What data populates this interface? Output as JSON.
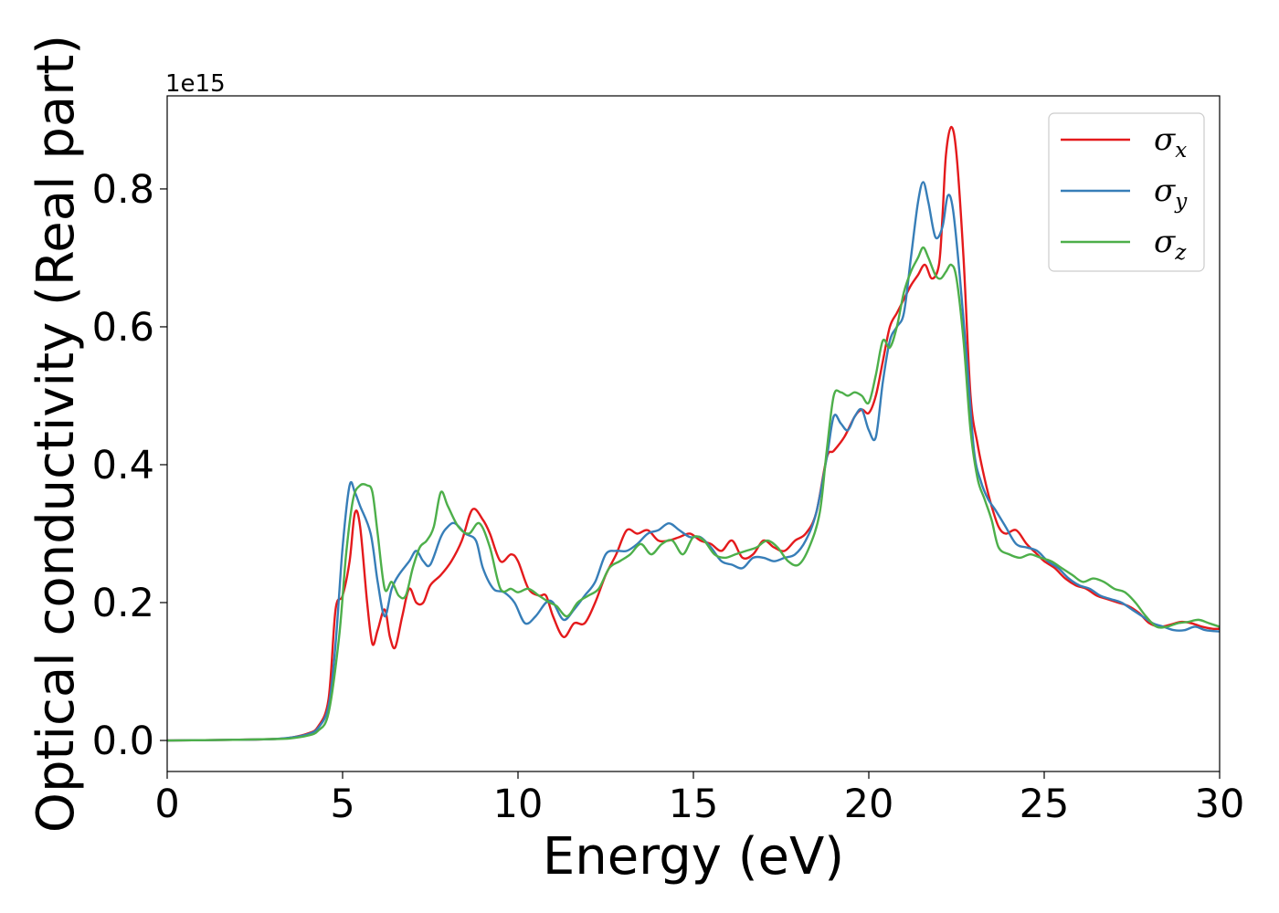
{
  "chart_data": {
    "type": "line",
    "title": "",
    "xlabel": "Energy (eV)",
    "ylabel": "Optical conductivity (Real part)",
    "y_offset_label": "1e15",
    "xlim": [
      0,
      30
    ],
    "ylim": [
      -0.045,
      0.935
    ],
    "x_ticks": [
      0,
      5,
      10,
      15,
      20,
      25,
      30
    ],
    "x_tick_labels": [
      "0",
      "5",
      "10",
      "15",
      "20",
      "25",
      "30"
    ],
    "y_ticks": [
      0.0,
      0.2,
      0.4,
      0.6,
      0.8
    ],
    "y_tick_labels": [
      "0.0",
      "0.2",
      "0.4",
      "0.6",
      "0.8"
    ],
    "grid": false,
    "legend_position": "top-right",
    "series": [
      {
        "name": "σx",
        "legend_symbol": "σ",
        "legend_subscript": "x",
        "color": "#e41a1c",
        "x": [
          0,
          2,
          3,
          3.5,
          4.0,
          4.3,
          4.6,
          4.8,
          5.0,
          5.2,
          5.35,
          5.5,
          5.7,
          5.85,
          6.0,
          6.2,
          6.35,
          6.5,
          6.7,
          6.9,
          7.1,
          7.3,
          7.5,
          7.8,
          8.1,
          8.4,
          8.7,
          9.0,
          9.2,
          9.5,
          9.8,
          10.0,
          10.3,
          10.6,
          10.8,
          11.0,
          11.3,
          11.6,
          11.9,
          12.2,
          12.5,
          12.8,
          13.1,
          13.4,
          13.7,
          14.0,
          14.3,
          14.6,
          14.9,
          15.2,
          15.5,
          15.8,
          16.1,
          16.4,
          16.7,
          17.0,
          17.3,
          17.6,
          17.9,
          18.2,
          18.5,
          18.8,
          19.0,
          19.3,
          19.6,
          19.8,
          20.0,
          20.2,
          20.4,
          20.6,
          20.8,
          21.0,
          21.2,
          21.4,
          21.6,
          21.8,
          22.0,
          22.1,
          22.2,
          22.35,
          22.5,
          22.7,
          22.9,
          23.1,
          23.3,
          23.5,
          23.7,
          23.9,
          24.2,
          24.5,
          24.8,
          25.0,
          25.3,
          25.6,
          25.9,
          26.2,
          26.5,
          26.8,
          27.1,
          27.4,
          27.7,
          28.0,
          28.3,
          28.6,
          28.9,
          29.2,
          29.5,
          29.8,
          30.0
        ],
        "y": [
          0.0,
          0.001,
          0.002,
          0.004,
          0.01,
          0.02,
          0.06,
          0.19,
          0.21,
          0.26,
          0.33,
          0.31,
          0.2,
          0.14,
          0.16,
          0.19,
          0.15,
          0.135,
          0.18,
          0.22,
          0.2,
          0.2,
          0.225,
          0.24,
          0.26,
          0.29,
          0.335,
          0.32,
          0.3,
          0.26,
          0.27,
          0.26,
          0.22,
          0.21,
          0.21,
          0.18,
          0.15,
          0.17,
          0.17,
          0.2,
          0.24,
          0.27,
          0.305,
          0.3,
          0.305,
          0.29,
          0.29,
          0.295,
          0.3,
          0.29,
          0.285,
          0.275,
          0.29,
          0.265,
          0.27,
          0.29,
          0.28,
          0.275,
          0.29,
          0.3,
          0.33,
          0.41,
          0.42,
          0.44,
          0.47,
          0.48,
          0.475,
          0.5,
          0.55,
          0.6,
          0.62,
          0.64,
          0.66,
          0.675,
          0.69,
          0.67,
          0.69,
          0.76,
          0.85,
          0.89,
          0.85,
          0.7,
          0.5,
          0.43,
          0.38,
          0.34,
          0.31,
          0.3,
          0.305,
          0.285,
          0.27,
          0.26,
          0.25,
          0.235,
          0.225,
          0.22,
          0.21,
          0.205,
          0.2,
          0.195,
          0.185,
          0.17,
          0.165,
          0.168,
          0.172,
          0.17,
          0.165,
          0.162,
          0.162
        ]
      },
      {
        "name": "σy",
        "legend_symbol": "σ",
        "legend_subscript": "y",
        "color": "#377eb8",
        "x": [
          0,
          2,
          3,
          3.5,
          4.0,
          4.3,
          4.6,
          4.8,
          5.0,
          5.2,
          5.35,
          5.5,
          5.8,
          6.0,
          6.2,
          6.4,
          6.6,
          6.9,
          7.1,
          7.3,
          7.5,
          7.8,
          8.0,
          8.2,
          8.5,
          8.8,
          9.0,
          9.3,
          9.6,
          9.9,
          10.2,
          10.5,
          10.8,
          11.0,
          11.3,
          11.6,
          11.9,
          12.2,
          12.5,
          12.8,
          13.1,
          13.4,
          13.7,
          14.0,
          14.3,
          14.6,
          14.9,
          15.2,
          15.5,
          15.8,
          16.1,
          16.4,
          16.7,
          17.0,
          17.3,
          17.6,
          17.9,
          18.2,
          18.5,
          18.8,
          19.0,
          19.2,
          19.4,
          19.6,
          19.8,
          20.0,
          20.2,
          20.4,
          20.6,
          20.8,
          21.0,
          21.2,
          21.4,
          21.55,
          21.7,
          21.9,
          22.1,
          22.25,
          22.4,
          22.6,
          22.8,
          23.0,
          23.2,
          23.4,
          23.6,
          23.9,
          24.2,
          24.5,
          24.8,
          25.1,
          25.4,
          25.7,
          26.0,
          26.3,
          26.6,
          26.9,
          27.2,
          27.5,
          27.8,
          28.1,
          28.4,
          28.7,
          29.0,
          29.3,
          29.6,
          30.0
        ],
        "y": [
          0.0,
          0.001,
          0.002,
          0.004,
          0.009,
          0.018,
          0.05,
          0.14,
          0.28,
          0.37,
          0.36,
          0.34,
          0.3,
          0.23,
          0.18,
          0.22,
          0.24,
          0.26,
          0.275,
          0.26,
          0.255,
          0.295,
          0.31,
          0.315,
          0.3,
          0.29,
          0.25,
          0.22,
          0.215,
          0.2,
          0.17,
          0.18,
          0.2,
          0.2,
          0.175,
          0.19,
          0.21,
          0.23,
          0.27,
          0.275,
          0.275,
          0.285,
          0.3,
          0.305,
          0.315,
          0.305,
          0.295,
          0.295,
          0.28,
          0.26,
          0.255,
          0.25,
          0.265,
          0.265,
          0.26,
          0.265,
          0.27,
          0.29,
          0.33,
          0.41,
          0.47,
          0.46,
          0.45,
          0.47,
          0.48,
          0.45,
          0.44,
          0.52,
          0.58,
          0.6,
          0.62,
          0.7,
          0.78,
          0.81,
          0.78,
          0.73,
          0.745,
          0.79,
          0.77,
          0.67,
          0.55,
          0.42,
          0.375,
          0.35,
          0.335,
          0.31,
          0.285,
          0.28,
          0.275,
          0.26,
          0.25,
          0.235,
          0.225,
          0.22,
          0.21,
          0.205,
          0.2,
          0.19,
          0.18,
          0.17,
          0.165,
          0.16,
          0.16,
          0.165,
          0.16,
          0.158
        ]
      },
      {
        "name": "σz",
        "legend_symbol": "σ",
        "legend_subscript": "z",
        "color": "#4daf4a",
        "x": [
          0,
          2,
          3,
          3.5,
          4.0,
          4.3,
          4.6,
          4.9,
          5.1,
          5.3,
          5.5,
          5.7,
          5.85,
          6.0,
          6.2,
          6.4,
          6.6,
          6.8,
          7.0,
          7.2,
          7.4,
          7.6,
          7.8,
          8.0,
          8.3,
          8.6,
          8.9,
          9.2,
          9.5,
          9.8,
          10.0,
          10.3,
          10.6,
          10.9,
          11.1,
          11.4,
          11.7,
          12.0,
          12.3,
          12.6,
          12.9,
          13.2,
          13.5,
          13.8,
          14.1,
          14.4,
          14.7,
          15.0,
          15.3,
          15.6,
          15.9,
          16.2,
          16.5,
          16.8,
          17.1,
          17.4,
          17.7,
          18.0,
          18.3,
          18.6,
          18.8,
          19.0,
          19.2,
          19.4,
          19.6,
          19.8,
          20.0,
          20.2,
          20.4,
          20.6,
          20.8,
          21.0,
          21.2,
          21.4,
          21.55,
          21.7,
          21.9,
          22.05,
          22.2,
          22.35,
          22.5,
          22.7,
          22.9,
          23.1,
          23.3,
          23.5,
          23.7,
          24.0,
          24.3,
          24.6,
          24.9,
          25.2,
          25.5,
          25.8,
          26.1,
          26.4,
          26.7,
          27.0,
          27.3,
          27.6,
          27.9,
          28.2,
          28.5,
          28.8,
          29.1,
          29.4,
          29.7,
          30.0
        ],
        "y": [
          0.0,
          0.001,
          0.002,
          0.003,
          0.007,
          0.014,
          0.04,
          0.15,
          0.27,
          0.35,
          0.37,
          0.37,
          0.36,
          0.3,
          0.22,
          0.23,
          0.21,
          0.21,
          0.25,
          0.28,
          0.29,
          0.31,
          0.36,
          0.34,
          0.31,
          0.3,
          0.315,
          0.28,
          0.22,
          0.22,
          0.215,
          0.22,
          0.21,
          0.2,
          0.195,
          0.18,
          0.2,
          0.21,
          0.22,
          0.25,
          0.26,
          0.27,
          0.285,
          0.27,
          0.285,
          0.29,
          0.27,
          0.295,
          0.29,
          0.27,
          0.265,
          0.27,
          0.275,
          0.28,
          0.29,
          0.28,
          0.26,
          0.255,
          0.28,
          0.33,
          0.42,
          0.5,
          0.505,
          0.5,
          0.505,
          0.5,
          0.49,
          0.53,
          0.58,
          0.57,
          0.6,
          0.65,
          0.68,
          0.7,
          0.715,
          0.7,
          0.675,
          0.67,
          0.68,
          0.69,
          0.67,
          0.58,
          0.45,
          0.38,
          0.35,
          0.32,
          0.28,
          0.27,
          0.265,
          0.27,
          0.265,
          0.26,
          0.25,
          0.24,
          0.23,
          0.235,
          0.23,
          0.22,
          0.215,
          0.2,
          0.18,
          0.165,
          0.165,
          0.17,
          0.172,
          0.175,
          0.17,
          0.165
        ]
      }
    ]
  }
}
